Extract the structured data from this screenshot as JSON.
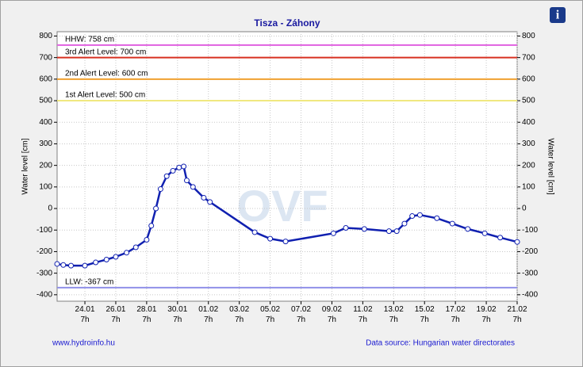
{
  "chart_data": {
    "type": "line",
    "title": "Tisza - Záhony",
    "ylabel": "Water level [cm]",
    "y2label": "Water level [cm]",
    "watermark": "OVF",
    "footer_left": "www.hydroinfo.hu",
    "footer_right": "Data source: Hungarian water directorates",
    "info_icon": "i",
    "xlim": [
      -1.8,
      28
    ],
    "ylim": [
      -430,
      820
    ],
    "y2lim": [
      -430,
      820
    ],
    "yticks": [
      -400,
      -300,
      -200,
      -100,
      0,
      100,
      200,
      300,
      400,
      500,
      600,
      700,
      800
    ],
    "y2ticks": [
      -400,
      -300,
      -200,
      -100,
      0,
      100,
      200,
      300,
      400,
      500,
      600,
      700,
      800
    ],
    "xticks": [
      {
        "value": 0,
        "label": "24.01 7h"
      },
      {
        "value": 2,
        "label": "26.01 7h"
      },
      {
        "value": 4,
        "label": "28.01 7h"
      },
      {
        "value": 6,
        "label": "30.01 7h"
      },
      {
        "value": 8,
        "label": "01.02 7h"
      },
      {
        "value": 10,
        "label": "03.02 7h"
      },
      {
        "value": 12,
        "label": "05.02 7h"
      },
      {
        "value": 14,
        "label": "07.02 7h"
      },
      {
        "value": 16,
        "label": "09.02 7h"
      },
      {
        "value": 18,
        "label": "11.02 7h"
      },
      {
        "value": 20,
        "label": "13.02 7h"
      },
      {
        "value": 22,
        "label": "15.02 7h"
      },
      {
        "value": 24,
        "label": "17.02 7h"
      },
      {
        "value": 26,
        "label": "19.02 7h"
      },
      {
        "value": 28,
        "label": "21.02 7h"
      }
    ],
    "grid": true,
    "levels": [
      {
        "label": "HHW: 758 cm",
        "value": 758,
        "color": "#e060e0"
      },
      {
        "label": "3rd Alert Level: 700 cm",
        "value": 700,
        "color": "#d83020"
      },
      {
        "label": "2nd Alert Level: 600 cm",
        "value": 600,
        "color": "#f0a030"
      },
      {
        "label": "1st Alert Level: 500 cm",
        "value": 500,
        "color": "#f0e880"
      },
      {
        "label": "LLW: -367 cm",
        "value": -367,
        "color": "#9090e8"
      }
    ],
    "series": [
      {
        "name": "Water level",
        "color": "#1020b0",
        "x": [
          -1.8,
          -1.4,
          -0.9,
          0,
          0.7,
          1.4,
          2.0,
          2.7,
          3.3,
          4.0,
          4.3,
          4.6,
          4.9,
          5.3,
          5.7,
          6.1,
          6.4,
          6.6,
          7.0,
          7.7,
          8.1,
          11.0,
          12.0,
          13.0,
          16.1,
          16.9,
          18.1,
          19.7,
          20.2,
          20.7,
          21.2,
          21.7,
          22.8,
          23.8,
          24.8,
          25.9,
          26.9,
          28.0
        ],
        "values": [
          -257,
          -262,
          -265,
          -265,
          -250,
          -237,
          -224,
          -205,
          -180,
          -145,
          -80,
          0,
          90,
          150,
          175,
          190,
          195,
          130,
          100,
          50,
          30,
          -110,
          -140,
          -153,
          -115,
          -90,
          -95,
          -105,
          -105,
          -70,
          -35,
          -30,
          -45,
          -70,
          -95,
          -115,
          -135,
          -155
        ]
      }
    ]
  }
}
